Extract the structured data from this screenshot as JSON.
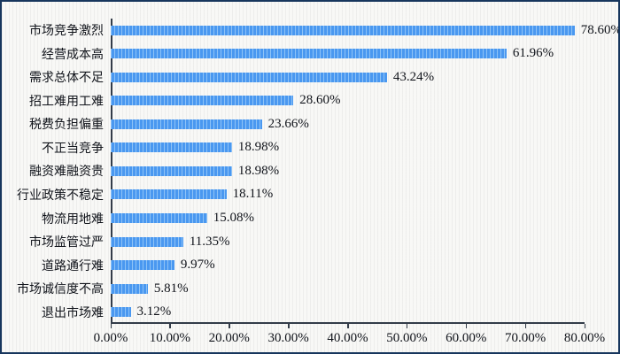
{
  "chart_data": {
    "type": "bar",
    "orientation": "horizontal",
    "title": "",
    "xlabel": "",
    "ylabel": "",
    "categories": [
      "市场竞争激烈",
      "经营成本高",
      "需求总体不足",
      "招工难用工难",
      "税费负担偏重",
      "不正当竞争",
      "融资难融资贵",
      "行业政策不稳定",
      "物流用地难",
      "市场监管过严",
      "道路通行难",
      "市场诚信度不高",
      "退出市场难"
    ],
    "values": [
      78.6,
      61.96,
      43.24,
      28.6,
      23.66,
      18.98,
      18.98,
      18.11,
      15.08,
      11.35,
      9.97,
      5.81,
      3.12
    ],
    "value_labels": [
      "78.60%",
      "61.96%",
      "43.24%",
      "28.60%",
      "23.66%",
      "18.98%",
      "18.98%",
      "18.11%",
      "15.08%",
      "11.35%",
      "9.97%",
      "5.81%",
      "3.12%"
    ],
    "xlim": [
      0,
      80
    ],
    "x_tick_values": [
      0,
      10,
      20,
      30,
      40,
      50,
      60,
      70,
      80
    ],
    "x_tick_labels": [
      "0.00%",
      "10.00%",
      "20.00%",
      "30.00%",
      "40.00%",
      "50.00%",
      "60.00%",
      "70.00%",
      "80.00%"
    ],
    "grid": false,
    "legend": false
  },
  "colors": {
    "frame_border": "#17365d",
    "background": "#f8f8f6",
    "axis": "#333c49",
    "text": "#10131a",
    "bar": "#4a98f0",
    "bar_stripe": "#8ec3f7"
  }
}
